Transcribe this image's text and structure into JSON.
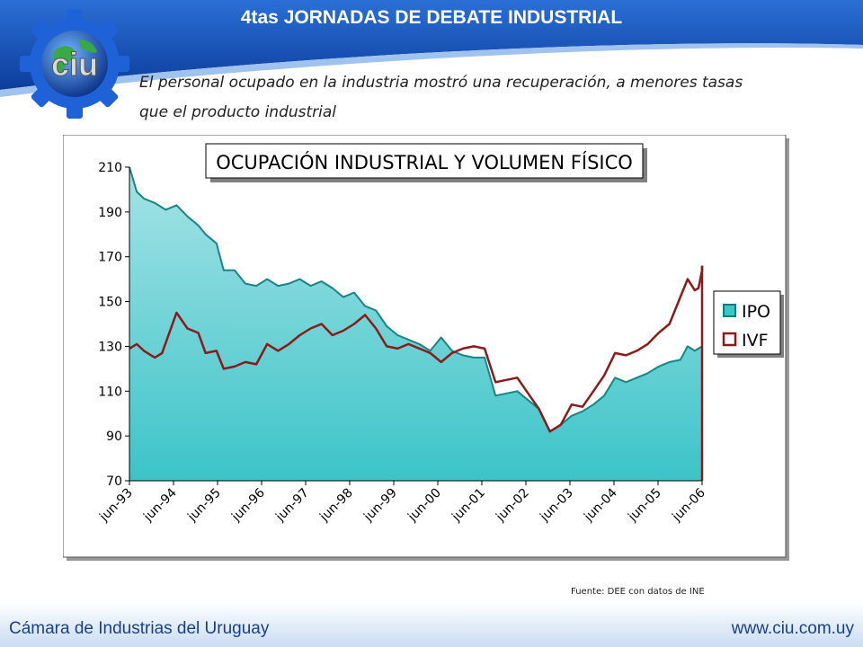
{
  "header": {
    "title": "4tas JORNADAS DE DEBATE INDUSTRIAL"
  },
  "logo": {
    "text": "ciu"
  },
  "subtitle": {
    "line1": "El personal ocupado en la industria mostró una recuperación, a menores tasas",
    "line2": "que el producto industrial"
  },
  "chart_data": {
    "type": "area",
    "title": "OCUPACIÓN INDUSTRIAL Y VOLUMEN FÍSICO",
    "xlabel": "",
    "ylabel": "",
    "ylim": [
      70,
      210
    ],
    "yticks": [
      210,
      190,
      170,
      150,
      130,
      110,
      90,
      70
    ],
    "x_range": [
      "1993-06",
      "2006-08"
    ],
    "x_ticks": [
      "jun-93",
      "jun-94",
      "jun-95",
      "jun-96",
      "jun-97",
      "jun-98",
      "jun-99",
      "jun-00",
      "jun-01",
      "jun-02",
      "jun-03",
      "jun-04",
      "jun-05",
      "jun-06"
    ],
    "grid": false,
    "legend": {
      "position": "right",
      "entries": [
        "IPO",
        "IVF"
      ]
    },
    "series": [
      {
        "name": "IPO",
        "style": "area",
        "color": "#3cc4c8",
        "line_color": "#1a8585",
        "points": [
          [
            "1993-06",
            210
          ],
          [
            "1993-08",
            199
          ],
          [
            "1993-10",
            196
          ],
          [
            "1994-01",
            194
          ],
          [
            "1994-04",
            191
          ],
          [
            "1994-07",
            193
          ],
          [
            "1994-10",
            188
          ],
          [
            "1995-01",
            184
          ],
          [
            "1995-03",
            180
          ],
          [
            "1995-06",
            176
          ],
          [
            "1995-08",
            164
          ],
          [
            "1995-11",
            164
          ],
          [
            "1996-02",
            158
          ],
          [
            "1996-05",
            157
          ],
          [
            "1996-08",
            160
          ],
          [
            "1996-11",
            157
          ],
          [
            "1997-02",
            158
          ],
          [
            "1997-05",
            160
          ],
          [
            "1997-08",
            157
          ],
          [
            "1997-11",
            159
          ],
          [
            "1998-02",
            156
          ],
          [
            "1998-05",
            152
          ],
          [
            "1998-08",
            154
          ],
          [
            "1998-11",
            148
          ],
          [
            "1999-02",
            146
          ],
          [
            "1999-05",
            139
          ],
          [
            "1999-08",
            135
          ],
          [
            "1999-11",
            133
          ],
          [
            "2000-02",
            131
          ],
          [
            "2000-05",
            128
          ],
          [
            "2000-08",
            134
          ],
          [
            "2000-11",
            128
          ],
          [
            "2001-02",
            126
          ],
          [
            "2001-05",
            125
          ],
          [
            "2001-08",
            125
          ],
          [
            "2001-11",
            108
          ],
          [
            "2002-02",
            109
          ],
          [
            "2002-05",
            110
          ],
          [
            "2002-08",
            106
          ],
          [
            "2002-11",
            102
          ],
          [
            "2003-02",
            92
          ],
          [
            "2003-05",
            95
          ],
          [
            "2003-08",
            99
          ],
          [
            "2003-11",
            101
          ],
          [
            "2004-02",
            104
          ],
          [
            "2004-05",
            108
          ],
          [
            "2004-08",
            116
          ],
          [
            "2004-11",
            114
          ],
          [
            "2005-02",
            116
          ],
          [
            "2005-05",
            118
          ],
          [
            "2005-08",
            121
          ],
          [
            "2005-11",
            123
          ],
          [
            "2006-02",
            124
          ],
          [
            "2006-04",
            130
          ],
          [
            "2006-06",
            128
          ],
          [
            "2006-08",
            130
          ]
        ]
      },
      {
        "name": "IVF",
        "style": "line",
        "color": "#8b1a1a",
        "points": [
          [
            "1993-06",
            129
          ],
          [
            "1993-08",
            131
          ],
          [
            "1993-10",
            128
          ],
          [
            "1994-01",
            125
          ],
          [
            "1994-03",
            127
          ],
          [
            "1994-05",
            136
          ],
          [
            "1994-07",
            145
          ],
          [
            "1994-10",
            138
          ],
          [
            "1995-01",
            136
          ],
          [
            "1995-03",
            127
          ],
          [
            "1995-06",
            128
          ],
          [
            "1995-08",
            120
          ],
          [
            "1995-11",
            121
          ],
          [
            "1996-02",
            123
          ],
          [
            "1996-05",
            122
          ],
          [
            "1996-08",
            131
          ],
          [
            "1996-11",
            128
          ],
          [
            "1997-02",
            131
          ],
          [
            "1997-05",
            135
          ],
          [
            "1997-08",
            138
          ],
          [
            "1997-11",
            140
          ],
          [
            "1998-02",
            135
          ],
          [
            "1998-05",
            137
          ],
          [
            "1998-08",
            140
          ],
          [
            "1998-11",
            144
          ],
          [
            "1999-02",
            138
          ],
          [
            "1999-05",
            130
          ],
          [
            "1999-08",
            129
          ],
          [
            "1999-11",
            131
          ],
          [
            "2000-02",
            129
          ],
          [
            "2000-05",
            127
          ],
          [
            "2000-08",
            123
          ],
          [
            "2000-11",
            127
          ],
          [
            "2001-02",
            129
          ],
          [
            "2001-05",
            130
          ],
          [
            "2001-08",
            129
          ],
          [
            "2001-11",
            114
          ],
          [
            "2002-02",
            115
          ],
          [
            "2002-05",
            116
          ],
          [
            "2002-08",
            109
          ],
          [
            "2002-11",
            102
          ],
          [
            "2003-02",
            92
          ],
          [
            "2003-05",
            95
          ],
          [
            "2003-08",
            104
          ],
          [
            "2003-11",
            103
          ],
          [
            "2004-02",
            110
          ],
          [
            "2004-05",
            117
          ],
          [
            "2004-08",
            127
          ],
          [
            "2004-11",
            126
          ],
          [
            "2005-02",
            128
          ],
          [
            "2005-05",
            131
          ],
          [
            "2005-08",
            136
          ],
          [
            "2005-11",
            140
          ],
          [
            "2006-02",
            152
          ],
          [
            "2006-04",
            160
          ],
          [
            "2006-06",
            155
          ],
          [
            "2006-07",
            156
          ],
          [
            "2006-08",
            164
          ],
          [
            "2006-09",
            166
          ]
        ]
      }
    ]
  },
  "source_note": {
    "text": "Fuente: DEE con datos de INE"
  },
  "footer": {
    "org": "Cámara de Industrias del Uruguay",
    "url": "www.ciu.com.uy"
  }
}
